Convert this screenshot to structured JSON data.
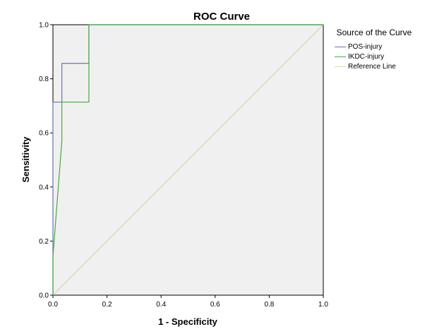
{
  "chart_data": {
    "type": "line",
    "title": "ROC Curve",
    "xlabel": "1 - Specificity",
    "ylabel": "Sensitivity",
    "xlim": [
      0,
      1
    ],
    "ylim": [
      0,
      1
    ],
    "xticks": [
      "0.0",
      "0.2",
      "0.4",
      "0.6",
      "0.8",
      "1.0"
    ],
    "yticks": [
      "0.0",
      "0.2",
      "0.4",
      "0.6",
      "0.8",
      "1.0"
    ],
    "grid": false,
    "legend_title": "Source of the Curve",
    "legend_position": "right",
    "plot_background": "#f0f0f0",
    "series": [
      {
        "name": "POS-injury",
        "color": "#6677aa",
        "x": [
          0,
          0,
          0.033,
          0.033,
          0.133,
          0.133,
          1.0
        ],
        "y": [
          0,
          0.714,
          0.714,
          0.857,
          0.857,
          1.0,
          1.0
        ]
      },
      {
        "name": "IKDC-injury",
        "color": "#44aa44",
        "x": [
          0,
          0.0,
          0.033,
          0.033,
          0.133,
          0.133,
          1.0
        ],
        "y": [
          0,
          0.143,
          0.571,
          0.714,
          0.714,
          1.0,
          1.0
        ]
      },
      {
        "name": "Reference Line",
        "color": "#d9d9a0",
        "x": [
          0,
          1
        ],
        "y": [
          0,
          1
        ]
      }
    ]
  }
}
